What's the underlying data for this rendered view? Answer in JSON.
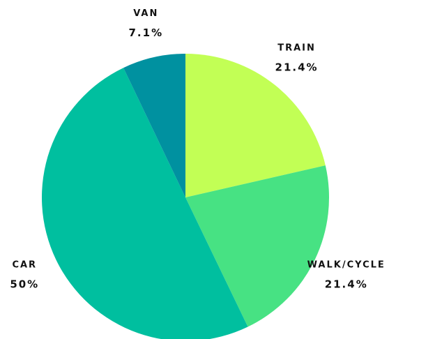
{
  "chart_data": {
    "type": "pie",
    "categories": [
      "Train",
      "Walk/Cycle",
      "Car",
      "Van"
    ],
    "values": [
      21.4,
      21.4,
      50,
      7.1
    ],
    "value_labels": [
      "21.4%",
      "21.4%",
      "50%",
      "7.1%"
    ],
    "colors": [
      "#c2ff55",
      "#47e283",
      "#00bf9f",
      "#0091a0"
    ]
  }
}
